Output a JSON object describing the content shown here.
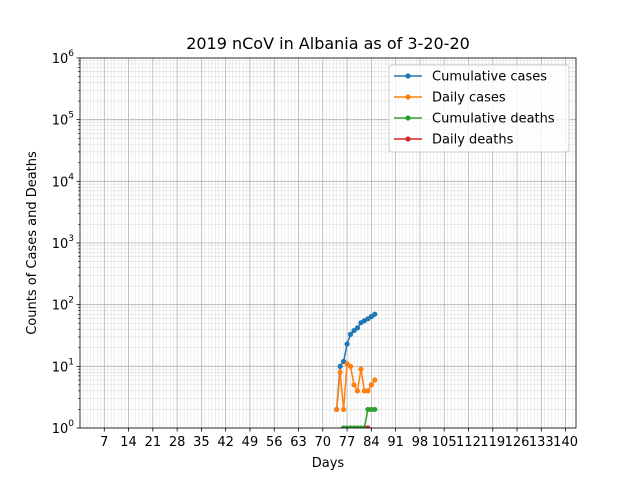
{
  "chart_data": {
    "type": "line",
    "title": "2019 nCoV in Albania as of 3-20-20",
    "xlabel": "Days",
    "ylabel": "Counts of Cases and Deaths",
    "x_scale": "linear",
    "y_scale": "log",
    "xlim": [
      0,
      143
    ],
    "ylim": [
      1,
      1000000
    ],
    "x_ticks": [
      7,
      14,
      21,
      28,
      35,
      42,
      49,
      56,
      63,
      70,
      77,
      84,
      91,
      98,
      105,
      112,
      119,
      126,
      133,
      140
    ],
    "x_tick_labels": [
      "7",
      "14",
      "21",
      "28",
      "35",
      "42",
      "49",
      "56",
      "63",
      "70",
      "77",
      "84",
      "91",
      "98",
      "105",
      "112",
      "119",
      "126",
      "133",
      "140"
    ],
    "y_ticks": [
      1,
      10,
      100,
      1000,
      10000,
      100000,
      1000000
    ],
    "y_tick_labels": [
      {
        "base": "10",
        "exp": "0"
      },
      {
        "base": "10",
        "exp": "1"
      },
      {
        "base": "10",
        "exp": "2"
      },
      {
        "base": "10",
        "exp": "3"
      },
      {
        "base": "10",
        "exp": "4"
      },
      {
        "base": "10",
        "exp": "5"
      },
      {
        "base": "10",
        "exp": "6"
      }
    ],
    "grid": true,
    "legend_position": "top-right",
    "series": [
      {
        "name": "Cumulative cases",
        "color": "#1f77b4",
        "x": [
          74,
          75,
          76,
          77,
          78,
          79,
          80,
          81,
          82,
          83,
          84,
          85
        ],
        "y": [
          2,
          10,
          12,
          23,
          33,
          38,
          42,
          51,
          55,
          59,
          64,
          70
        ]
      },
      {
        "name": "Daily cases",
        "color": "#ff7f0e",
        "x": [
          74,
          75,
          76,
          77,
          78,
          79,
          80,
          81,
          82,
          83,
          84,
          85
        ],
        "y": [
          2,
          8,
          2,
          11,
          10,
          5,
          4,
          9,
          4,
          4,
          5,
          6
        ]
      },
      {
        "name": "Cumulative deaths",
        "color": "#2ca02c",
        "x": [
          76,
          77,
          78,
          79,
          80,
          81,
          82,
          83,
          84,
          85
        ],
        "y": [
          1,
          1,
          1,
          1,
          1,
          1,
          1,
          2,
          2,
          2
        ]
      },
      {
        "name": "Daily deaths",
        "color": "#d62728",
        "x": [
          83
        ],
        "y": [
          1
        ]
      }
    ]
  }
}
